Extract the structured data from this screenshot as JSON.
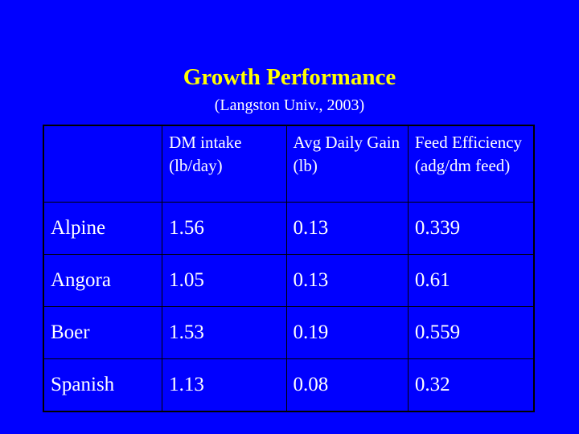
{
  "slide": {
    "title": "Growth Performance",
    "subtitle": "(Langston Univ., 2003)"
  },
  "table": {
    "headers": [
      "",
      "DM intake (lb/day)",
      "Avg Daily Gain (lb)",
      "Feed Efficiency (adg/dm feed)"
    ],
    "rows": [
      [
        "Alpine",
        "1.56",
        "0.13",
        "0.339"
      ],
      [
        "Angora",
        "1.05",
        "0.13",
        "0.61"
      ],
      [
        "Boer",
        "1.53",
        "0.19",
        "0.559"
      ],
      [
        "Spanish",
        "1.13",
        "0.08",
        "0.32"
      ]
    ]
  },
  "colors": {
    "background": "#0000FF",
    "title": "#FFFF00",
    "text": "#FFFFFF",
    "border": "#000000"
  }
}
